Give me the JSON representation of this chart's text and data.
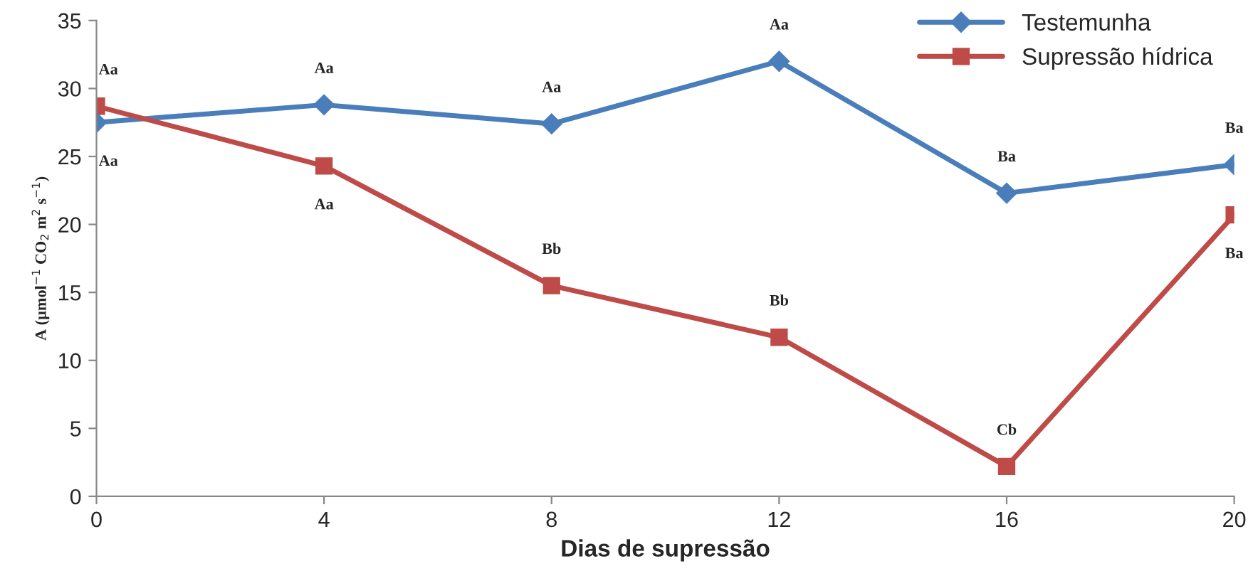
{
  "chart_data": {
    "type": "line",
    "xlabel": "Dias de supressão",
    "ylabel": "A (µmol$^{−1}$ CO$_{2}$ m$^{2}$ s$^{−1}$)",
    "x": [
      0,
      4,
      8,
      12,
      16,
      20
    ],
    "series": [
      {
        "name": "Testemunha",
        "color": "#4a7ebb",
        "marker": "diamond",
        "values": [
          27.5,
          28.8,
          27.4,
          32.0,
          22.3,
          24.4
        ]
      },
      {
        "name": "Supressão hídrica",
        "color": "#be4b48",
        "marker": "square",
        "values": [
          28.7,
          24.3,
          15.5,
          11.7,
          2.2,
          20.7
        ]
      }
    ],
    "xlim": [
      0,
      20
    ],
    "xticks": [
      0,
      4,
      8,
      12,
      16,
      20
    ],
    "ylim": [
      0,
      35
    ],
    "yticks": [
      0,
      5,
      10,
      15,
      20,
      25,
      30,
      35
    ],
    "grid": false,
    "legend": "top right",
    "annotations": [
      {
        "text": "Aa",
        "x": 0,
        "y": 28.7
      },
      {
        "text": "Aa",
        "x": 0,
        "y": 27.5
      },
      {
        "text": "Aa",
        "x": 4,
        "y": 28.8
      },
      {
        "text": "Aa",
        "x": 4,
        "y": 24.3
      },
      {
        "text": "Aa",
        "x": 8,
        "y": 27.4
      },
      {
        "text": "Bb",
        "x": 8,
        "y": 15.5
      },
      {
        "text": "Aa",
        "x": 12,
        "y": 32.0
      },
      {
        "text": "Bb",
        "x": 12,
        "y": 11.7
      },
      {
        "text": "Ba",
        "x": 16,
        "y": 22.3
      },
      {
        "text": "Cb",
        "x": 16,
        "y": 2.2
      },
      {
        "text": "Ba",
        "x": 20,
        "y": 24.4
      },
      {
        "text": "Ba",
        "x": 20,
        "y": 20.7
      }
    ]
  }
}
